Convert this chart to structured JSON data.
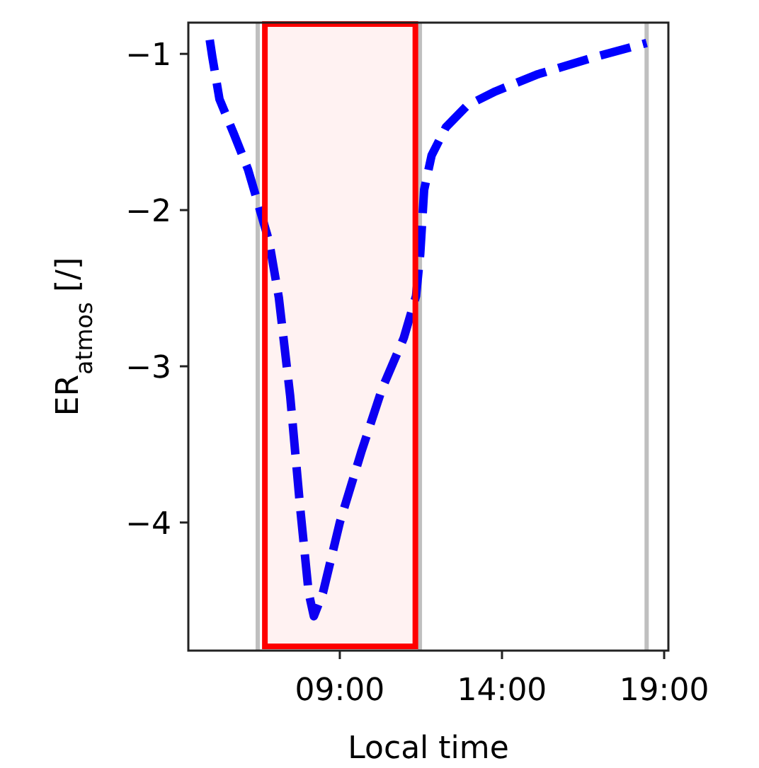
{
  "chart_data": {
    "type": "line",
    "xlabel": "Local time",
    "ylabel": "ER$_{atmos}$ [/]",
    "xlim": [
      4.33,
      19.13
    ],
    "ylim": [
      -4.82,
      -0.8
    ],
    "xticks": [
      {
        "value": 9,
        "label": "09:00"
      },
      {
        "value": 14,
        "label": "14:00"
      },
      {
        "value": 19,
        "label": "19:00"
      }
    ],
    "yticks": [
      {
        "value": -1,
        "label": "−1"
      },
      {
        "value": -2,
        "label": "−2"
      },
      {
        "value": -3,
        "label": "−3"
      },
      {
        "value": -4,
        "label": "−4"
      }
    ],
    "grid": false,
    "line_style": "dashed",
    "marker": "none",
    "series": [
      {
        "color": "#0000ff",
        "x": [
          4.99,
          5.07,
          5.29,
          5.73,
          6.17,
          6.51,
          6.82,
          7.12,
          7.47,
          7.78,
          8.04,
          8.2,
          8.48,
          9.0,
          9.66,
          10.31,
          10.97,
          11.35,
          11.48,
          11.6,
          11.83,
          12.27,
          12.93,
          13.8,
          15.11,
          16.86,
          18.46
        ],
        "values": [
          -0.91,
          -1.02,
          -1.29,
          -1.51,
          -1.74,
          -1.98,
          -2.2,
          -2.56,
          -3.19,
          -3.91,
          -4.45,
          -4.6,
          -4.45,
          -4.0,
          -3.55,
          -3.14,
          -2.82,
          -2.55,
          -2.28,
          -1.87,
          -1.65,
          -1.47,
          -1.33,
          -1.24,
          -1.13,
          -1.02,
          -0.93
        ]
      }
    ],
    "ref_lines": [
      {
        "axis": "x",
        "value": 6.47,
        "color": "#bfbfbf"
      },
      {
        "axis": "x",
        "value": 11.47,
        "color": "#bfbfbf"
      },
      {
        "axis": "x",
        "value": 18.46,
        "color": "#bfbfbf"
      }
    ],
    "bands": [
      {
        "axis": "x",
        "from": 6.69,
        "to": 11.33,
        "color": "#ff0000"
      }
    ]
  }
}
